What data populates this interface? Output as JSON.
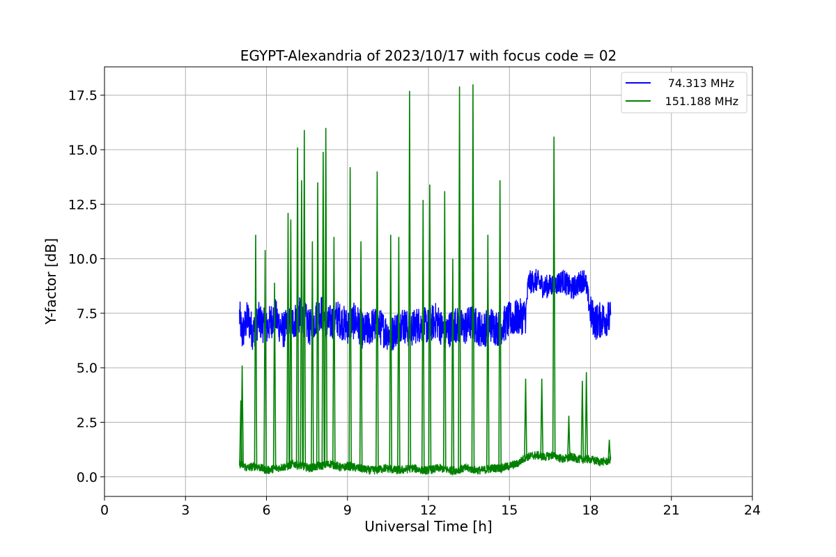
{
  "chart_data": {
    "type": "line",
    "title": "EGYPT-Alexandria of 2023/10/17 with focus code = 02",
    "xlabel": "Universal Time [h]",
    "ylabel": "Y-factor [dB]",
    "xlim": [
      0,
      24
    ],
    "ylim": [
      -0.9,
      18.8
    ],
    "xticks": [
      0,
      3,
      6,
      9,
      12,
      15,
      18,
      21,
      24
    ],
    "xtick_labels": [
      "0",
      "3",
      "6",
      "9",
      "12",
      "15",
      "18",
      "21",
      "24"
    ],
    "yticks": [
      0,
      2.5,
      5,
      7.5,
      10,
      12.5,
      15,
      17.5
    ],
    "ytick_labels": [
      "0.0",
      "2.5",
      "5.0",
      "7.5",
      "10.0",
      "12.5",
      "15.0",
      "17.5"
    ],
    "grid": true,
    "legend_position": "top-right",
    "series": [
      {
        "name": "74.313 MHz",
        "color": "#0000ff",
        "x": [
          5.0,
          5.1,
          5.3,
          5.5,
          5.7,
          6.0,
          6.3,
          6.6,
          7.0,
          7.3,
          7.6,
          8.0,
          8.3,
          8.6,
          9.0,
          9.3,
          9.6,
          10.0,
          10.3,
          10.6,
          11.0,
          11.3,
          11.6,
          12.0,
          12.3,
          12.6,
          13.0,
          13.3,
          13.6,
          14.0,
          14.3,
          14.6,
          15.0,
          15.3,
          15.6,
          15.7,
          16.0,
          16.3,
          16.6,
          17.0,
          17.3,
          17.6,
          17.8,
          18.0,
          18.2,
          18.4,
          18.6,
          18.75
        ],
        "y": [
          7.4,
          6.5,
          7.3,
          6.6,
          7.2,
          6.8,
          7.4,
          6.7,
          7.1,
          7.5,
          6.8,
          7.6,
          7.0,
          7.3,
          6.9,
          7.2,
          6.6,
          7.0,
          6.8,
          6.5,
          7.1,
          6.7,
          7.0,
          6.9,
          7.2,
          6.6,
          7.0,
          6.8,
          7.1,
          6.7,
          7.0,
          6.8,
          7.2,
          7.3,
          7.4,
          8.9,
          9.0,
          8.7,
          8.8,
          9.0,
          8.6,
          8.9,
          9.1,
          7.5,
          7.1,
          7.2,
          7.3,
          7.2
        ]
      },
      {
        "name": "151.188 MHz",
        "color": "#008000",
        "x": [
          5.0,
          5.3,
          5.6,
          6.0,
          6.4,
          6.8,
          7.0,
          7.3,
          7.6,
          8.0,
          8.4,
          8.8,
          9.0,
          9.4,
          9.8,
          10.0,
          10.4,
          10.8,
          11.0,
          11.4,
          11.8,
          12.0,
          12.4,
          12.8,
          13.0,
          13.4,
          13.8,
          14.0,
          14.4,
          14.7,
          15.0,
          15.3,
          15.6,
          16.0,
          16.3,
          16.6,
          17.0,
          17.3,
          17.6,
          18.0,
          18.3,
          18.6,
          18.75
        ],
        "y": [
          0.6,
          0.4,
          0.5,
          0.3,
          0.4,
          0.5,
          0.6,
          0.5,
          0.4,
          0.5,
          0.6,
          0.4,
          0.5,
          0.4,
          0.3,
          0.3,
          0.4,
          0.3,
          0.3,
          0.4,
          0.3,
          0.3,
          0.4,
          0.3,
          0.3,
          0.4,
          0.3,
          0.3,
          0.4,
          0.4,
          0.5,
          0.6,
          0.9,
          1.0,
          0.9,
          1.0,
          0.8,
          0.9,
          0.8,
          0.8,
          0.7,
          0.7,
          0.8
        ],
        "spikes": [
          {
            "x": 5.05,
            "y": 3.5
          },
          {
            "x": 5.1,
            "y": 5.1
          },
          {
            "x": 5.6,
            "y": 11.1
          },
          {
            "x": 5.95,
            "y": 10.4
          },
          {
            "x": 6.3,
            "y": 8.9
          },
          {
            "x": 6.8,
            "y": 12.1
          },
          {
            "x": 6.9,
            "y": 11.8
          },
          {
            "x": 7.15,
            "y": 15.1
          },
          {
            "x": 7.3,
            "y": 13.6
          },
          {
            "x": 7.4,
            "y": 15.9
          },
          {
            "x": 7.7,
            "y": 10.8
          },
          {
            "x": 7.9,
            "y": 13.5
          },
          {
            "x": 8.1,
            "y": 14.9
          },
          {
            "x": 8.2,
            "y": 16.0
          },
          {
            "x": 8.5,
            "y": 11.0
          },
          {
            "x": 9.1,
            "y": 14.2
          },
          {
            "x": 9.5,
            "y": 10.8
          },
          {
            "x": 10.1,
            "y": 14.0
          },
          {
            "x": 10.6,
            "y": 11.1
          },
          {
            "x": 10.9,
            "y": 11.0
          },
          {
            "x": 11.3,
            "y": 17.7
          },
          {
            "x": 11.8,
            "y": 12.7
          },
          {
            "x": 12.05,
            "y": 13.4
          },
          {
            "x": 12.6,
            "y": 13.1
          },
          {
            "x": 12.9,
            "y": 10.0
          },
          {
            "x": 13.15,
            "y": 17.9
          },
          {
            "x": 13.65,
            "y": 18.0
          },
          {
            "x": 14.2,
            "y": 11.1
          },
          {
            "x": 14.65,
            "y": 13.6
          },
          {
            "x": 15.6,
            "y": 4.5
          },
          {
            "x": 16.2,
            "y": 4.5
          },
          {
            "x": 16.65,
            "y": 15.6
          },
          {
            "x": 17.2,
            "y": 2.8
          },
          {
            "x": 17.7,
            "y": 4.4
          },
          {
            "x": 17.85,
            "y": 4.8
          },
          {
            "x": 18.7,
            "y": 1.7
          }
        ]
      }
    ]
  }
}
